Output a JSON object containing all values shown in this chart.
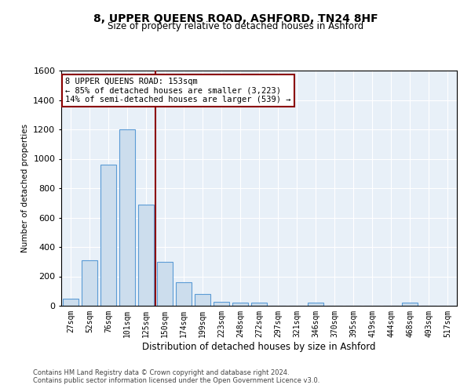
{
  "title": "8, UPPER QUEENS ROAD, ASHFORD, TN24 8HF",
  "subtitle": "Size of property relative to detached houses in Ashford",
  "xlabel": "Distribution of detached houses by size in Ashford",
  "ylabel": "Number of detached properties",
  "categories": [
    "27sqm",
    "52sqm",
    "76sqm",
    "101sqm",
    "125sqm",
    "150sqm",
    "174sqm",
    "199sqm",
    "223sqm",
    "248sqm",
    "272sqm",
    "297sqm",
    "321sqm",
    "346sqm",
    "370sqm",
    "395sqm",
    "419sqm",
    "444sqm",
    "468sqm",
    "493sqm",
    "517sqm"
  ],
  "bar_values": [
    50,
    310,
    960,
    1200,
    690,
    300,
    160,
    80,
    25,
    20,
    20,
    0,
    0,
    20,
    0,
    0,
    0,
    0,
    20,
    0,
    0
  ],
  "bar_color": "#ccdded",
  "bar_edge_color": "#5b9bd5",
  "ylim": [
    0,
    1600
  ],
  "yticks": [
    0,
    200,
    400,
    600,
    800,
    1000,
    1200,
    1400,
    1600
  ],
  "vline_index": 5,
  "vline_color": "#8b0000",
  "annotation_title": "8 UPPER QUEENS ROAD: 153sqm",
  "annotation_line1": "← 85% of detached houses are smaller (3,223)",
  "annotation_line2": "14% of semi-detached houses are larger (539) →",
  "annotation_box_edgecolor": "#8b0000",
  "footnote1": "Contains HM Land Registry data © Crown copyright and database right 2024.",
  "footnote2": "Contains public sector information licensed under the Open Government Licence v3.0.",
  "plot_bg_color": "#e8f0f8"
}
